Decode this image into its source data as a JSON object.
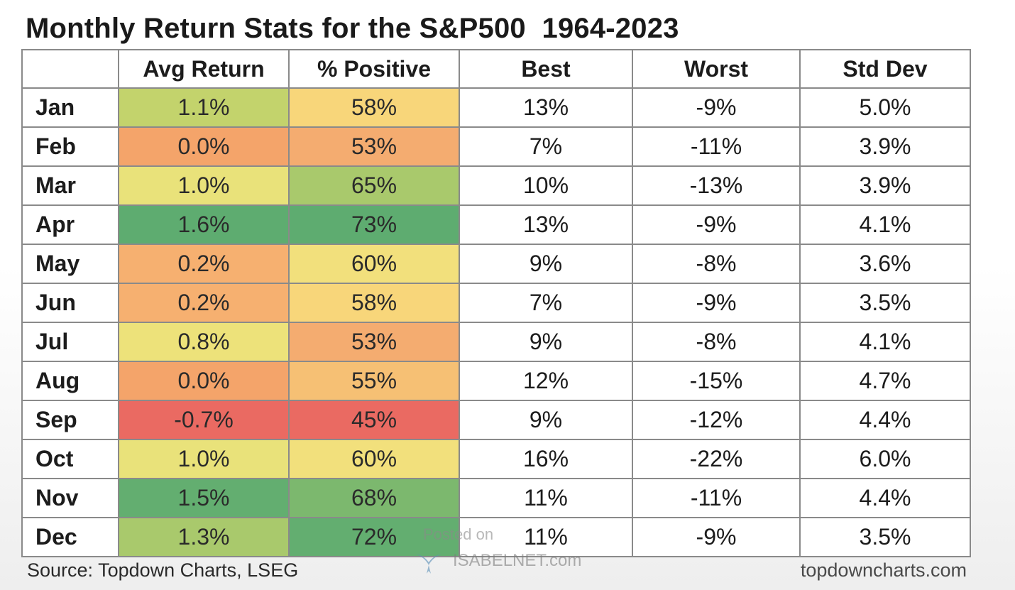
{
  "title": "Monthly Return Stats for the S&P500  1964-2023",
  "chart_data": {
    "type": "table",
    "columns": [
      "",
      "Avg Return",
      "% Positive",
      "Best",
      "Worst",
      "Std Dev"
    ],
    "rows": [
      {
        "month": "Jan",
        "avg_return": "1.1%",
        "pct_positive": "58%",
        "best": "13%",
        "worst": "-9%",
        "std_dev": "5.0%"
      },
      {
        "month": "Feb",
        "avg_return": "0.0%",
        "pct_positive": "53%",
        "best": "7%",
        "worst": "-11%",
        "std_dev": "3.9%"
      },
      {
        "month": "Mar",
        "avg_return": "1.0%",
        "pct_positive": "65%",
        "best": "10%",
        "worst": "-13%",
        "std_dev": "3.9%"
      },
      {
        "month": "Apr",
        "avg_return": "1.6%",
        "pct_positive": "73%",
        "best": "13%",
        "worst": "-9%",
        "std_dev": "4.1%"
      },
      {
        "month": "May",
        "avg_return": "0.2%",
        "pct_positive": "60%",
        "best": "9%",
        "worst": "-8%",
        "std_dev": "3.6%"
      },
      {
        "month": "Jun",
        "avg_return": "0.2%",
        "pct_positive": "58%",
        "best": "7%",
        "worst": "-9%",
        "std_dev": "3.5%"
      },
      {
        "month": "Jul",
        "avg_return": "0.8%",
        "pct_positive": "53%",
        "best": "9%",
        "worst": "-8%",
        "std_dev": "4.1%"
      },
      {
        "month": "Aug",
        "avg_return": "0.0%",
        "pct_positive": "55%",
        "best": "12%",
        "worst": "-15%",
        "std_dev": "4.7%"
      },
      {
        "month": "Sep",
        "avg_return": "-0.7%",
        "pct_positive": "45%",
        "best": "9%",
        "worst": "-12%",
        "std_dev": "4.4%"
      },
      {
        "month": "Oct",
        "avg_return": "1.0%",
        "pct_positive": "60%",
        "best": "16%",
        "worst": "-22%",
        "std_dev": "6.0%"
      },
      {
        "month": "Nov",
        "avg_return": "1.5%",
        "pct_positive": "68%",
        "best": "11%",
        "worst": "-11%",
        "std_dev": "4.4%"
      },
      {
        "month": "Dec",
        "avg_return": "1.3%",
        "pct_positive": "72%",
        "best": "11%",
        "worst": "-9%",
        "std_dev": "3.5%"
      }
    ],
    "heatmap_colors": {
      "avg_return": [
        "#c3d36c",
        "#f4a46a",
        "#e9e27a",
        "#5eac70",
        "#f6b070",
        "#f6b070",
        "#ede27a",
        "#f4a46a",
        "#ea6a62",
        "#e9e27a",
        "#63ae70",
        "#a9c96c"
      ],
      "pct_positive": [
        "#f8d67a",
        "#f4ac70",
        "#a9c96c",
        "#5eac70",
        "#f2e07c",
        "#f8d67a",
        "#f4ac70",
        "#f6c074",
        "#ea6a62",
        "#f2e07c",
        "#7cb86e",
        "#63ae70"
      ]
    }
  },
  "source": "Source: Topdown Charts, LSEG",
  "site": "topdowncharts.com",
  "watermark": {
    "posted": "Posted on",
    "site": "ISABELNET.com"
  }
}
